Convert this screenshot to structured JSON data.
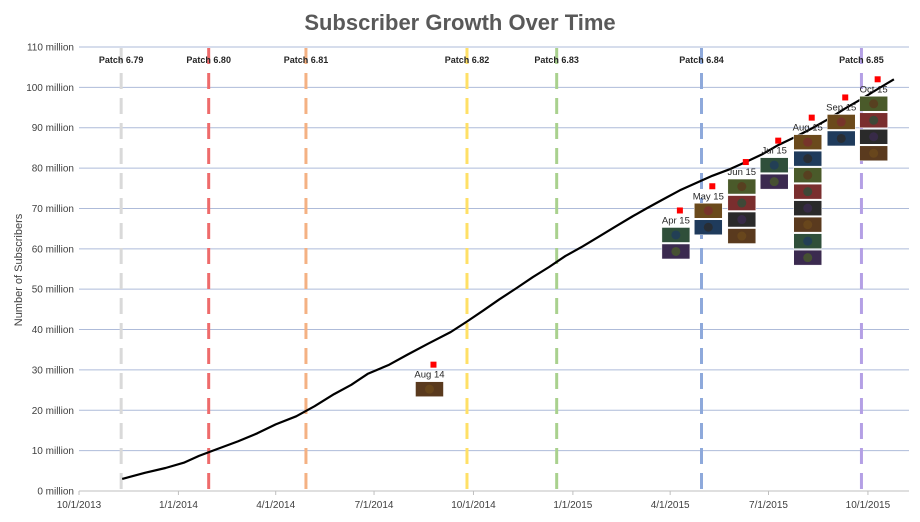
{
  "chart_data": {
    "type": "line",
    "title": "Subscriber Growth Over Time",
    "xlabel": "",
    "ylabel": "Number of Subscribers",
    "y_ticks": [
      "0 million",
      "10 million",
      "20 million",
      "30 million",
      "40 million",
      "50 million",
      "60 million",
      "70 million",
      "80 million",
      "90 million",
      "100 million",
      "110 million"
    ],
    "ylim": [
      0,
      110
    ],
    "x_ticks": [
      "10/1/2013",
      "1/1/2014",
      "4/1/2014",
      "7/1/2014",
      "10/1/2014",
      "1/1/2015",
      "4/1/2015",
      "7/1/2015",
      "10/1/2015"
    ],
    "xlim": [
      "2013-10-01",
      "2015-11-08"
    ],
    "grid": "horizontal",
    "series": [
      {
        "color": "#000000",
        "points": [
          {
            "x": "2013-11-10",
            "y": 3.0
          },
          {
            "x": "2013-12-01",
            "y": 4.5
          },
          {
            "x": "2013-12-20",
            "y": 5.7
          },
          {
            "x": "2014-01-06",
            "y": 7.0
          },
          {
            "x": "2014-01-20",
            "y": 8.7
          },
          {
            "x": "2014-02-05",
            "y": 10.3
          },
          {
            "x": "2014-02-25",
            "y": 12.3
          },
          {
            "x": "2014-03-15",
            "y": 14.3
          },
          {
            "x": "2014-04-01",
            "y": 16.5
          },
          {
            "x": "2014-04-20",
            "y": 18.5
          },
          {
            "x": "2014-05-07",
            "y": 21.0
          },
          {
            "x": "2014-05-25",
            "y": 24.0
          },
          {
            "x": "2014-06-10",
            "y": 26.3
          },
          {
            "x": "2014-06-25",
            "y": 29.0
          },
          {
            "x": "2014-07-15",
            "y": 31.3
          },
          {
            "x": "2014-08-01",
            "y": 33.8
          },
          {
            "x": "2014-08-20",
            "y": 36.5
          },
          {
            "x": "2014-09-10",
            "y": 39.4
          },
          {
            "x": "2014-09-25",
            "y": 42.0
          },
          {
            "x": "2014-10-10",
            "y": 44.7
          },
          {
            "x": "2014-10-25",
            "y": 47.5
          },
          {
            "x": "2014-11-10",
            "y": 50.3
          },
          {
            "x": "2014-11-25",
            "y": 53.0
          },
          {
            "x": "2014-12-10",
            "y": 55.5
          },
          {
            "x": "2014-12-25",
            "y": 58.2
          },
          {
            "x": "2015-01-10",
            "y": 60.6
          },
          {
            "x": "2015-01-25",
            "y": 63.0
          },
          {
            "x": "2015-02-10",
            "y": 65.6
          },
          {
            "x": "2015-02-25",
            "y": 68.0
          },
          {
            "x": "2015-03-10",
            "y": 70.0
          },
          {
            "x": "2015-03-25",
            "y": 72.2
          },
          {
            "x": "2015-04-10",
            "y": 74.5
          },
          {
            "x": "2015-04-25",
            "y": 76.3
          },
          {
            "x": "2015-05-10",
            "y": 78.1
          },
          {
            "x": "2015-05-25",
            "y": 79.6
          },
          {
            "x": "2015-06-10",
            "y": 81.5
          },
          {
            "x": "2015-06-25",
            "y": 83.4
          },
          {
            "x": "2015-07-10",
            "y": 85.7
          },
          {
            "x": "2015-07-25",
            "y": 87.6
          },
          {
            "x": "2015-08-10",
            "y": 89.8
          },
          {
            "x": "2015-08-25",
            "y": 92.1
          },
          {
            "x": "2015-09-10",
            "y": 94.8
          },
          {
            "x": "2015-09-25",
            "y": 97.1
          },
          {
            "x": "2015-10-10",
            "y": 99.6
          },
          {
            "x": "2015-10-25",
            "y": 102.0
          }
        ]
      }
    ],
    "patches": [
      {
        "label": "Patch 6.79",
        "date": "2013-11-09",
        "color": "#d9d9d9"
      },
      {
        "label": "Patch 6.80",
        "date": "2014-01-29",
        "color": "#ee6b6b"
      },
      {
        "label": "Patch 6.81",
        "date": "2014-04-29",
        "color": "#f4b183"
      },
      {
        "label": "Patch 6.82",
        "date": "2014-09-25",
        "color": "#ffe066"
      },
      {
        "label": "Patch 6.83",
        "date": "2014-12-17",
        "color": "#a9d18e"
      },
      {
        "label": "Patch 6.84",
        "date": "2015-04-30",
        "color": "#8ea9db"
      },
      {
        "label": "Patch 6.85",
        "date": "2015-09-25",
        "color": "#b4a0e5"
      }
    ],
    "markers": [
      {
        "label": "Aug 14",
        "date": "2014-08-25",
        "y": 31.3,
        "heroes": 1
      },
      {
        "label": "Apr 15",
        "date": "2015-04-10",
        "y": 69.5,
        "heroes": 2
      },
      {
        "label": "May 15",
        "date": "2015-05-10",
        "y": 75.5,
        "heroes": 2
      },
      {
        "label": "Jun 15",
        "date": "2015-06-10",
        "y": 81.5,
        "heroes": 4
      },
      {
        "label": "Jul 15",
        "date": "2015-07-10",
        "y": 86.8,
        "heroes": 2
      },
      {
        "label": "Aug 15",
        "date": "2015-08-10",
        "y": 92.5,
        "heroes": 8
      },
      {
        "label": "Sep 15",
        "date": "2015-09-10",
        "y": 97.5,
        "heroes": 2
      },
      {
        "label": "Oct 15",
        "date": "2015-10-10",
        "y": 102.0,
        "heroes": 4
      }
    ],
    "colors": {
      "line": "#000000",
      "marker": "#ff0000",
      "grid": "#aebbd9"
    },
    "hero_palette": [
      "#5a3a1e",
      "#2f4f3a",
      "#3b2a4f",
      "#6b4a1c",
      "#1f3b5c",
      "#4a5a2a",
      "#7a2e2e",
      "#2a2a2a"
    ]
  }
}
